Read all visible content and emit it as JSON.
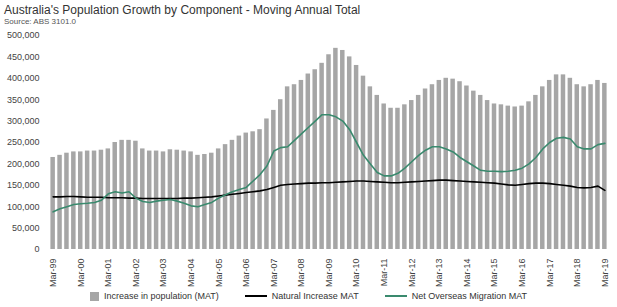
{
  "chart_data": {
    "type": "bar",
    "title": "Australia's Population Growth by Component - Moving Annual Total",
    "subtitle": "Source: ABS 3101.0",
    "categories": [
      "Mar-99",
      null,
      null,
      null,
      "Mar-00",
      null,
      null,
      null,
      "Mar-01",
      null,
      null,
      null,
      "Mar-02",
      null,
      null,
      null,
      "Mar-03",
      null,
      null,
      null,
      "Mar-04",
      null,
      null,
      null,
      "Mar-05",
      null,
      null,
      null,
      "Mar-06",
      null,
      null,
      null,
      "Mar-07",
      null,
      null,
      null,
      "Mar-08",
      null,
      null,
      null,
      "Mar-09",
      null,
      null,
      null,
      "Mar-10",
      null,
      null,
      null,
      "Mar-11",
      null,
      null,
      null,
      "Mar-12",
      null,
      null,
      null,
      "Mar-13",
      null,
      null,
      null,
      "Mar-14",
      null,
      null,
      null,
      "Mar-15",
      null,
      null,
      null,
      "Mar-16",
      null,
      null,
      null,
      "Mar-17",
      null,
      null,
      null,
      "Mar-18",
      null,
      null,
      null,
      "Mar-19"
    ],
    "series": [
      {
        "name": "Increase in population (MAT)",
        "type": "bar",
        "color": "#a6a6a6",
        "values": [
          215000,
          220000,
          225000,
          228000,
          228000,
          230000,
          230000,
          232000,
          235000,
          250000,
          255000,
          255000,
          253000,
          235000,
          230000,
          230000,
          228000,
          233000,
          232000,
          230000,
          228000,
          220000,
          222000,
          225000,
          235000,
          245000,
          255000,
          265000,
          272000,
          275000,
          280000,
          305000,
          325000,
          350000,
          380000,
          385000,
          395000,
          410000,
          420000,
          435000,
          455000,
          470000,
          465000,
          450000,
          430000,
          405000,
          380000,
          360000,
          340000,
          330000,
          330000,
          338000,
          348000,
          360000,
          375000,
          385000,
          395000,
          400000,
          398000,
          392000,
          382000,
          370000,
          360000,
          348000,
          340000,
          338000,
          335000,
          333000,
          335000,
          345000,
          360000,
          380000,
          395000,
          408000,
          408000,
          400000,
          385000,
          380000,
          385000,
          395000,
          388000
        ]
      },
      {
        "name": "Natural Increase MAT",
        "type": "line",
        "color": "#000000",
        "values": [
          123000,
          123000,
          124000,
          124000,
          123000,
          122000,
          122000,
          122000,
          121000,
          121000,
          121000,
          120000,
          120000,
          119000,
          119000,
          119000,
          119000,
          119000,
          119000,
          120000,
          120000,
          121000,
          122000,
          123000,
          125000,
          127000,
          129000,
          131000,
          133000,
          135000,
          137000,
          140000,
          145000,
          150000,
          152000,
          153000,
          154000,
          155000,
          155000,
          156000,
          156000,
          157000,
          158000,
          159000,
          160000,
          160000,
          159000,
          158000,
          157000,
          156000,
          156000,
          157000,
          158000,
          159000,
          160000,
          161000,
          162000,
          162000,
          161000,
          160000,
          159000,
          158000,
          157000,
          156000,
          155000,
          153000,
          151000,
          150000,
          152000,
          154000,
          155000,
          155000,
          154000,
          152000,
          150000,
          148000,
          145000,
          144000,
          145000,
          148000,
          138000
        ]
      },
      {
        "name": "Net Overseas Migration MAT",
        "type": "line",
        "color": "#3a8a6e",
        "values": [
          88000,
          95000,
          100000,
          105000,
          107000,
          108000,
          110000,
          115000,
          130000,
          135000,
          132000,
          135000,
          120000,
          112000,
          110000,
          113000,
          115000,
          117000,
          113000,
          108000,
          102000,
          100000,
          105000,
          110000,
          120000,
          128000,
          135000,
          140000,
          145000,
          160000,
          175000,
          195000,
          230000,
          238000,
          240000,
          255000,
          270000,
          285000,
          300000,
          315000,
          315000,
          310000,
          300000,
          280000,
          250000,
          220000,
          200000,
          180000,
          172000,
          172000,
          178000,
          190000,
          205000,
          220000,
          232000,
          240000,
          240000,
          235000,
          228000,
          215000,
          205000,
          195000,
          185000,
          183000,
          183000,
          182000,
          183000,
          185000,
          190000,
          200000,
          215000,
          235000,
          250000,
          260000,
          262000,
          258000,
          240000,
          235000,
          235000,
          245000,
          248000
        ]
      }
    ],
    "ylim": [
      0,
      500000
    ],
    "yticks": [
      0,
      {
        "value": 50000,
        "label": "50,000"
      },
      {
        "value": 100000,
        "label": "100,000"
      },
      {
        "value": 150000,
        "label": "150,000"
      },
      {
        "value": 200000,
        "label": "200,000"
      },
      {
        "value": 250000,
        "label": "250,000"
      },
      {
        "value": 300000,
        "label": "300,000"
      },
      {
        "value": 350000,
        "label": "350,000"
      },
      {
        "value": 400000,
        "label": "400,000"
      },
      {
        "value": 450000,
        "label": "450,000"
      },
      {
        "value": 500000,
        "label": "500,000"
      }
    ],
    "grid": false,
    "legend": "bottom"
  }
}
